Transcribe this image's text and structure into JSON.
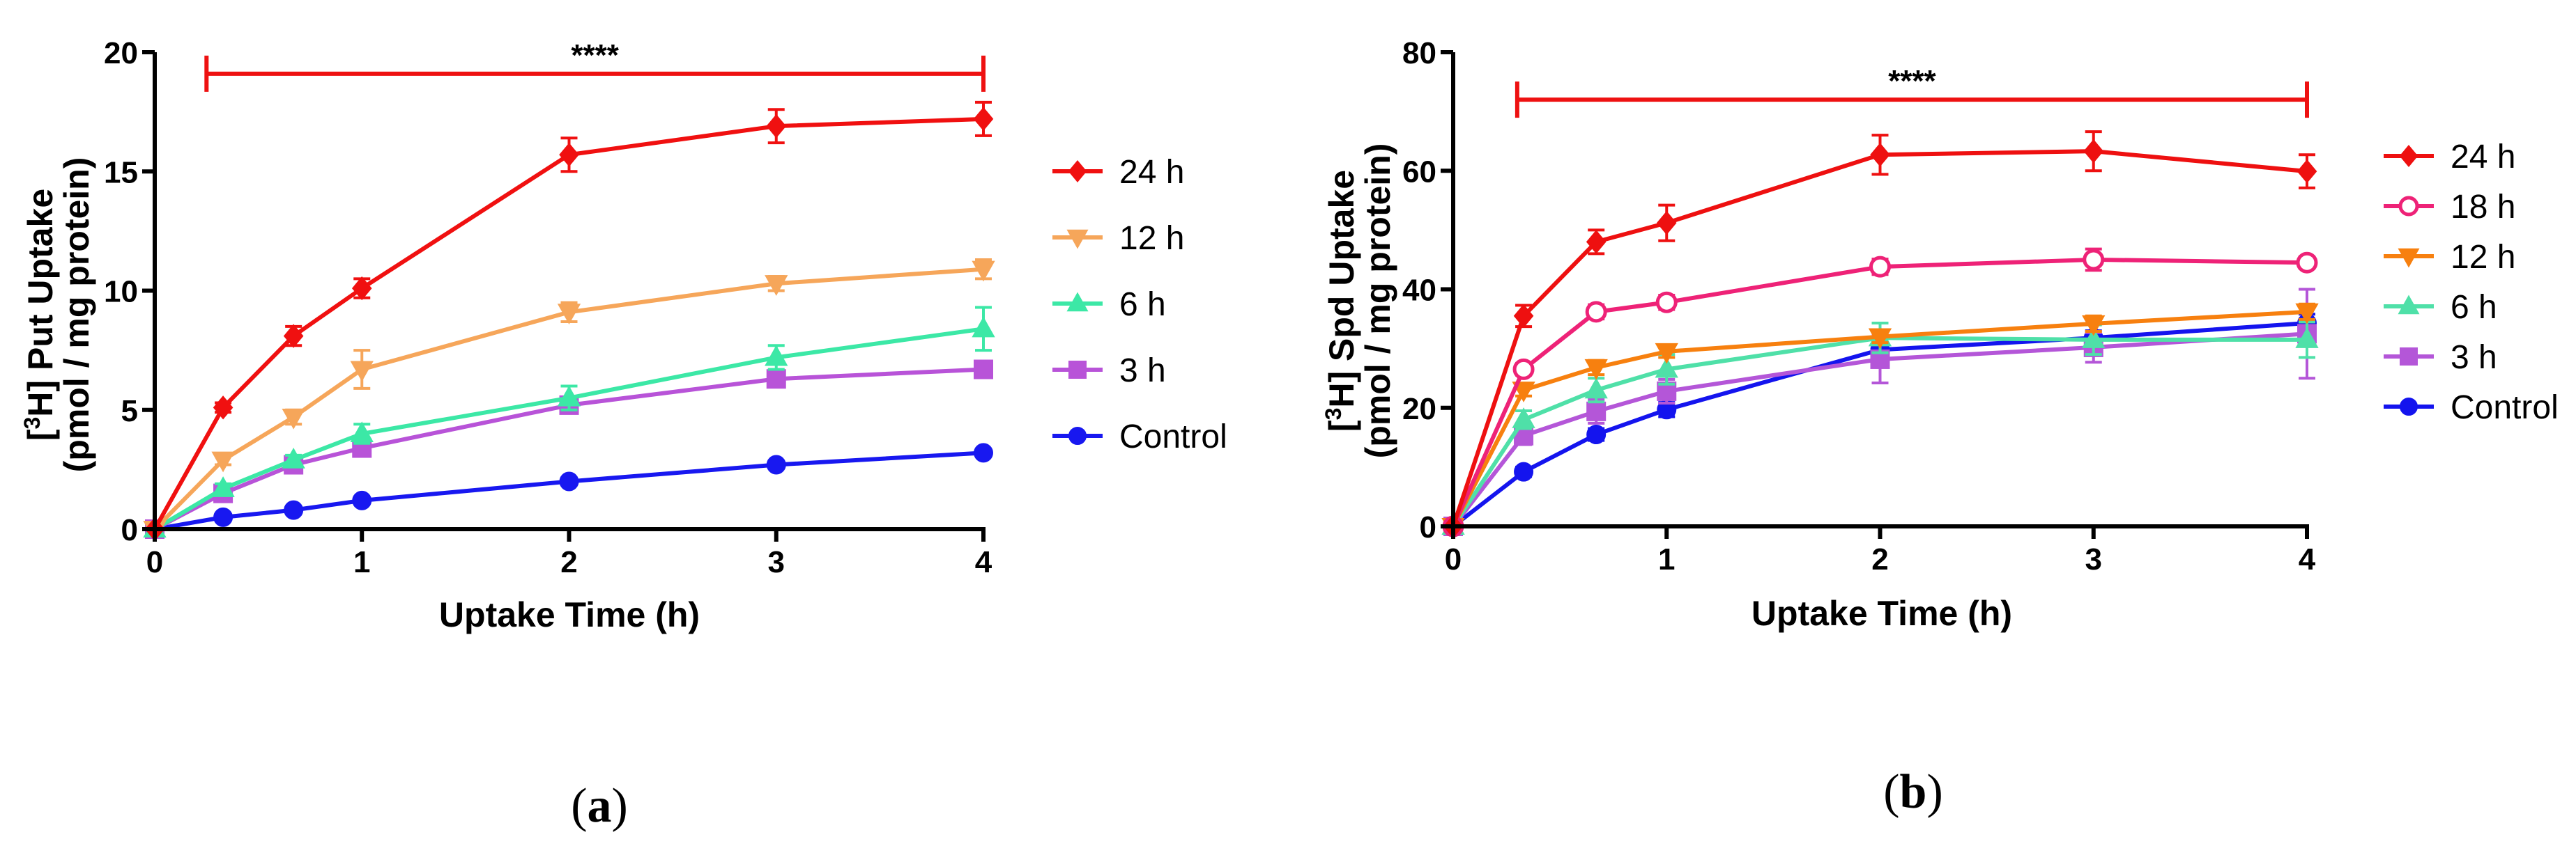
{
  "chart_data": [
    {
      "type": "line",
      "panel": "a",
      "panel_label": "a",
      "ylabel_main": "Put Uptake",
      "ylabel_sub": "(pmol / mg protein)",
      "xlabel": "Uptake Time (h)",
      "xlim": [
        0,
        4
      ],
      "ylim": [
        0,
        20
      ],
      "xticks": [
        0,
        1,
        2,
        3,
        4
      ],
      "yticks": [
        0,
        5,
        10,
        15,
        20
      ],
      "significance": {
        "label": "****",
        "from_x": 0.25,
        "to_x": 4,
        "y": 19.1
      },
      "x": [
        0,
        0.33,
        0.67,
        1,
        2,
        3,
        4
      ],
      "series": [
        {
          "name": "24 h",
          "color": "#f01010",
          "marker": "diamond",
          "filled": true,
          "values": [
            0,
            5.1,
            8.1,
            10.1,
            15.7,
            16.9,
            17.2
          ],
          "errors": [
            0,
            0.2,
            0.4,
            0.4,
            0.7,
            0.7,
            0.7
          ]
        },
        {
          "name": "12 h",
          "color": "#f6a65a",
          "marker": "triangle-down",
          "filled": true,
          "values": [
            0,
            2.9,
            4.7,
            6.7,
            9.1,
            10.3,
            10.9
          ],
          "errors": [
            0,
            0.2,
            0.3,
            0.8,
            0.4,
            0.3,
            0.4
          ]
        },
        {
          "name": "6 h",
          "color": "#3ce8a6",
          "marker": "triangle-up",
          "filled": true,
          "values": [
            0,
            1.7,
            2.9,
            4.0,
            5.5,
            7.2,
            8.4
          ],
          "errors": [
            0,
            0.2,
            0.2,
            0.4,
            0.5,
            0.5,
            0.9
          ]
        },
        {
          "name": "3 h",
          "color": "#b853d8",
          "marker": "square",
          "filled": true,
          "values": [
            0,
            1.5,
            2.7,
            3.4,
            5.2,
            6.3,
            6.7
          ],
          "errors": [
            0,
            0.1,
            0.2,
            0.2,
            0.3,
            0.2,
            0.2
          ]
        },
        {
          "name": "Control",
          "color": "#1818f0",
          "marker": "circle",
          "filled": true,
          "values": [
            0,
            0.5,
            0.8,
            1.2,
            2.0,
            2.7,
            3.2
          ],
          "errors": [
            0,
            0.05,
            0.05,
            0.1,
            0.1,
            0.1,
            0.1
          ]
        }
      ]
    },
    {
      "type": "line",
      "panel": "b",
      "panel_label": "b",
      "ylabel_main": "Spd Uptake",
      "ylabel_sub": "(pmol / mg protein)",
      "xlabel": "Uptake Time (h)",
      "xlim": [
        0,
        4
      ],
      "ylim": [
        0,
        80
      ],
      "xticks": [
        0,
        1,
        2,
        3,
        4
      ],
      "yticks": [
        0,
        20,
        40,
        60,
        80
      ],
      "significance": {
        "label": "****",
        "from_x": 0.3,
        "to_x": 4,
        "y": 72
      },
      "x": [
        0,
        0.33,
        0.67,
        1,
        2,
        3,
        4
      ],
      "series": [
        {
          "name": "24 h",
          "color": "#ee1010",
          "marker": "diamond",
          "filled": true,
          "values": [
            0,
            35.5,
            48,
            51.2,
            62.7,
            63.3,
            59.9
          ],
          "errors": [
            0,
            1.8,
            2.0,
            3.0,
            3.3,
            3.3,
            2.8
          ]
        },
        {
          "name": "18 h",
          "color": "#ee2277",
          "marker": "circle",
          "filled": false,
          "values": [
            0,
            26.5,
            36.2,
            37.8,
            43.8,
            45,
            44.5
          ],
          "errors": [
            0,
            1.0,
            1.2,
            1.2,
            1.3,
            1.8,
            1.0
          ]
        },
        {
          "name": "12 h",
          "color": "#f7800f",
          "marker": "triangle-down",
          "filled": true,
          "values": [
            0,
            23,
            26.8,
            29.5,
            32,
            34.2,
            36.2
          ],
          "errors": [
            0,
            1.0,
            1.2,
            1.0,
            1.0,
            1.3,
            1.3
          ]
        },
        {
          "name": "6 h",
          "color": "#4fe0a8",
          "marker": "triangle-up",
          "filled": true,
          "values": [
            0,
            18,
            23,
            26.5,
            31.8,
            31.5,
            31.5
          ],
          "errors": [
            0,
            1.5,
            2.0,
            2.5,
            2.5,
            2.5,
            3.0
          ]
        },
        {
          "name": "3 h",
          "color": "#b456d8",
          "marker": "square",
          "filled": true,
          "values": [
            0,
            15.3,
            19.4,
            22.8,
            28.2,
            30.2,
            32.5
          ],
          "errors": [
            0,
            1.5,
            2.0,
            2.0,
            4.0,
            2.5,
            7.5
          ]
        },
        {
          "name": "Control",
          "color": "#1414ee",
          "marker": "circle",
          "filled": true,
          "values": [
            0,
            9.2,
            15.5,
            19.7,
            29.8,
            31.8,
            34.3
          ],
          "errors": [
            0,
            0.8,
            1.0,
            1.2,
            1.2,
            1.2,
            1.5
          ]
        }
      ]
    }
  ]
}
